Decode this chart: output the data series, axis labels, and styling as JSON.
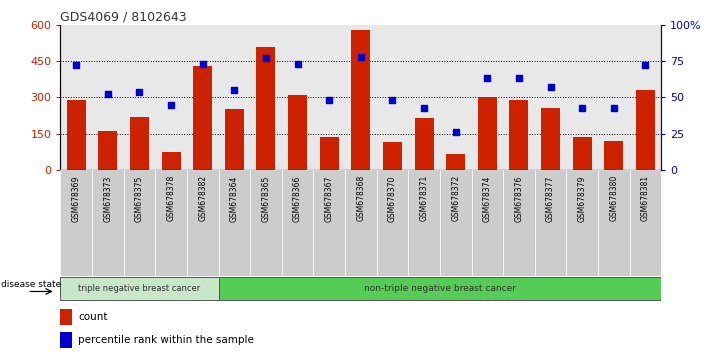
{
  "title": "GDS4069 / 8102643",
  "samples": [
    "GSM678369",
    "GSM678373",
    "GSM678375",
    "GSM678378",
    "GSM678382",
    "GSM678364",
    "GSM678365",
    "GSM678366",
    "GSM678367",
    "GSM678368",
    "GSM678370",
    "GSM678371",
    "GSM678372",
    "GSM678374",
    "GSM678376",
    "GSM678377",
    "GSM678379",
    "GSM678380",
    "GSM678381"
  ],
  "counts": [
    290,
    160,
    220,
    75,
    430,
    250,
    510,
    310,
    135,
    580,
    115,
    215,
    65,
    300,
    290,
    255,
    135,
    120,
    330
  ],
  "percentiles": [
    72,
    52,
    54,
    45,
    73,
    55,
    77,
    73,
    48,
    78,
    48,
    43,
    26,
    63,
    63,
    57,
    43,
    43,
    72
  ],
  "group1_count": 5,
  "group1_label": "triple negative breast cancer",
  "group2_label": "non-triple negative breast cancer",
  "bar_color": "#cc2200",
  "dot_color": "#0000cc",
  "left_axis_color": "#cc2200",
  "right_axis_color": "#0000cc",
  "ylim_left": [
    0,
    600
  ],
  "ylim_right": [
    0,
    100
  ],
  "yticks_left": [
    0,
    150,
    300,
    450,
    600
  ],
  "ytick_labels_left": [
    "0",
    "150",
    "300",
    "450",
    "600"
  ],
  "yticks_right": [
    0,
    25,
    50,
    75,
    100
  ],
  "ytick_labels_right": [
    "0",
    "25",
    "50",
    "75",
    "100%"
  ],
  "grid_lines": [
    150,
    300,
    450
  ],
  "legend_count_label": "count",
  "legend_pct_label": "percentile rank within the sample",
  "disease_state_label": "disease state",
  "group1_color": "#c8e6c8",
  "group2_color": "#55cc55",
  "col_bg_color": "#cccccc",
  "title_color": "#333333",
  "fig_width": 7.11,
  "fig_height": 3.54,
  "dpi": 100
}
